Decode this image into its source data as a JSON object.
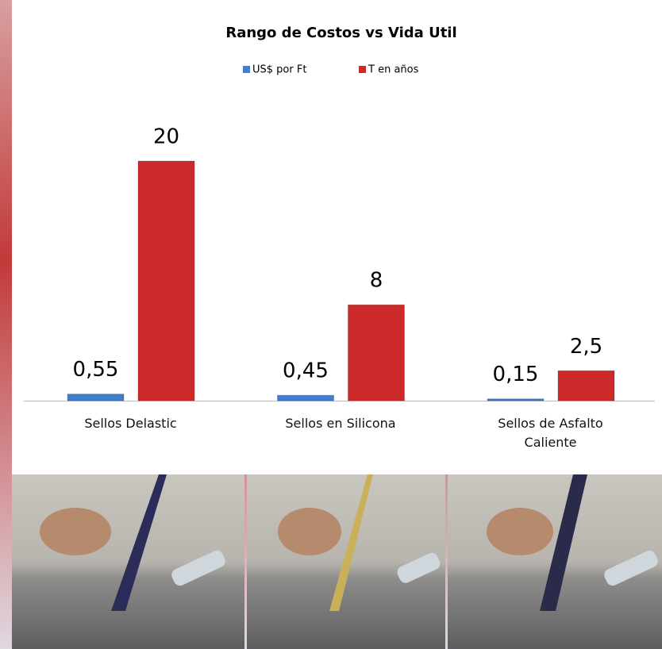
{
  "chart_data": {
    "type": "bar",
    "title": "Rango de Costos vs Vida Util",
    "categories": [
      "Sellos Delastic",
      "Sellos en Silicona",
      "Sellos de Asfalto Caliente"
    ],
    "series": [
      {
        "name": "US$  por Ft",
        "color": "#3f7fcf",
        "values": [
          0.55,
          0.45,
          0.15
        ],
        "value_labels": [
          "0,55",
          "0,45",
          "0,15"
        ]
      },
      {
        "name": "T en años",
        "color": "#cc2a2a",
        "values": [
          20,
          8,
          2.5
        ],
        "value_labels": [
          "20",
          "8",
          "2,5"
        ]
      }
    ]
  }
}
